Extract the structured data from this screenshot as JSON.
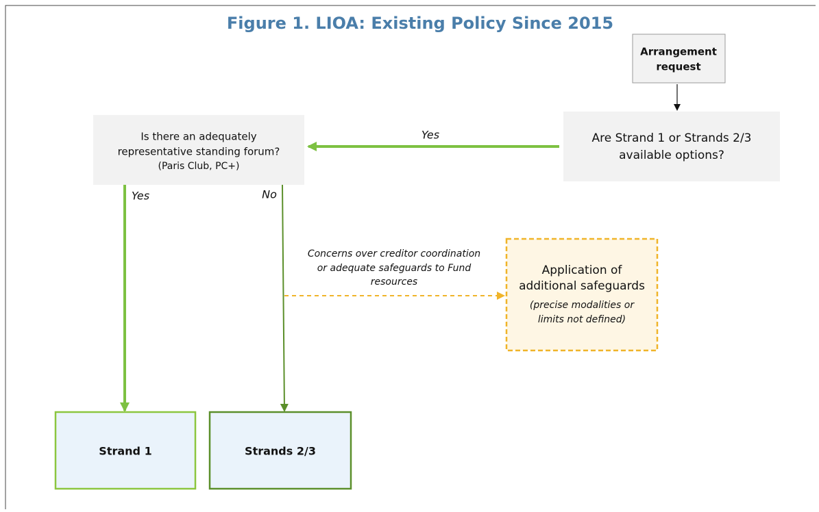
{
  "title": "Figure 1. LIOA: Existing Policy Since 2015",
  "nodes": [
    {
      "lines": [
        "Arrangement",
        "request"
      ]
    },
    {
      "lines": [
        "Are Strand 1 or Strands 2/3",
        "available options?"
      ]
    },
    {
      "lines": [
        "Is there  an adequately",
        "representative  standing forum?",
        "(Paris Club, PC+)"
      ]
    },
    {
      "lines": [
        "Application of",
        "additional safeguards"
      ],
      "note_lines": [
        "(precise modalities or",
        "limits not defined)"
      ]
    },
    {
      "lines": [
        "Strand 1"
      ]
    },
    {
      "lines": [
        "Strands 2/3"
      ]
    }
  ],
  "edges": [
    {
      "label": "Yes"
    },
    {
      "label": "Yes"
    },
    {
      "label": "No"
    },
    {
      "label_lines": [
        "Concerns over creditor coordination",
        "or adequate safeguards to Fund",
        "resources"
      ]
    }
  ]
}
